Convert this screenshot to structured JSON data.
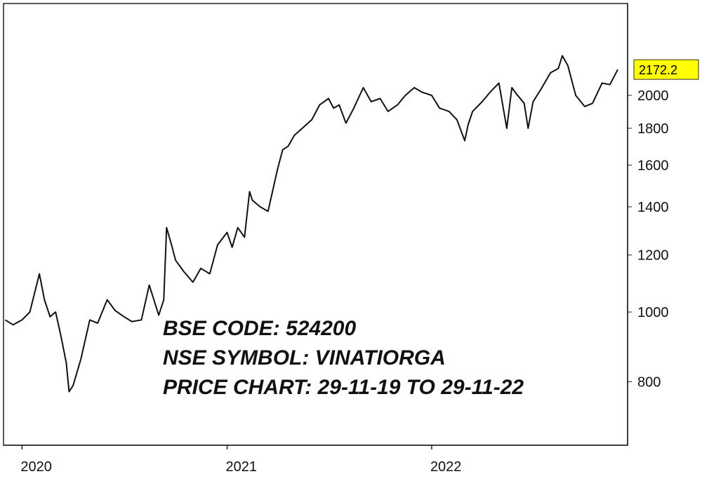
{
  "chart_data": {
    "type": "line",
    "x_tick_labels": [
      "2020",
      "2021",
      "2022"
    ],
    "y_tick_labels": [
      "800",
      "1000",
      "1200",
      "1400",
      "1600",
      "1800",
      "2000"
    ],
    "y_scale": "log",
    "ylim": [
      700,
      2450
    ],
    "y_axis_side": "right",
    "last_value_label": "2172.2",
    "annotations": [
      "BSE CODE:  524200",
      "NSE SYMBOL: VINATIORGA",
      "PRICE CHART: 29-11-19 TO 29-11-22"
    ],
    "grid": false,
    "legend": "none",
    "series": [
      {
        "x": [
          "2019-12-02",
          "2019-12-16",
          "2020-01-01",
          "2020-01-15",
          "2020-02-01",
          "2020-02-10",
          "2020-02-20",
          "2020-03-01",
          "2020-03-10",
          "2020-03-20",
          "2020-03-25",
          "2020-04-01",
          "2020-04-15",
          "2020-05-01",
          "2020-05-15",
          "2020-06-01",
          "2020-06-15",
          "2020-07-01",
          "2020-07-15",
          "2020-08-01",
          "2020-08-15",
          "2020-09-01",
          "2020-09-10",
          "2020-09-15",
          "2020-09-25",
          "2020-10-01",
          "2020-10-15",
          "2020-11-01",
          "2020-11-15",
          "2020-12-01",
          "2020-12-15",
          "2021-01-01",
          "2021-01-10",
          "2021-01-20",
          "2021-02-01",
          "2021-02-10",
          "2021-02-15",
          "2021-03-01",
          "2021-03-15",
          "2021-04-01",
          "2021-04-10",
          "2021-04-20",
          "2021-05-01",
          "2021-05-15",
          "2021-06-01",
          "2021-06-15",
          "2021-07-01",
          "2021-07-10",
          "2021-07-20",
          "2021-08-01",
          "2021-08-15",
          "2021-09-01",
          "2021-09-15",
          "2021-10-01",
          "2021-10-15",
          "2021-11-01",
          "2021-11-15",
          "2021-12-01",
          "2021-12-15",
          "2022-01-01",
          "2022-01-15",
          "2022-02-01",
          "2022-02-15",
          "2022-03-01",
          "2022-03-07",
          "2022-03-15",
          "2022-04-01",
          "2022-04-15",
          "2022-05-01",
          "2022-05-15",
          "2022-05-24",
          "2022-06-01",
          "2022-06-15",
          "2022-06-22",
          "2022-07-01",
          "2022-07-15",
          "2022-08-01",
          "2022-08-15",
          "2022-08-22",
          "2022-09-01",
          "2022-09-15",
          "2022-10-01",
          "2022-10-15",
          "2022-11-01",
          "2022-11-15",
          "2022-11-29"
        ],
        "y": [
          975,
          960,
          975,
          1000,
          1130,
          1040,
          985,
          1000,
          930,
          850,
          775,
          790,
          860,
          975,
          965,
          1040,
          1005,
          985,
          970,
          975,
          1090,
          990,
          1040,
          1310,
          1230,
          1180,
          1140,
          1100,
          1150,
          1130,
          1240,
          1290,
          1230,
          1310,
          1270,
          1470,
          1430,
          1400,
          1380,
          1580,
          1680,
          1700,
          1760,
          1800,
          1850,
          1940,
          1980,
          1920,
          1940,
          1830,
          1920,
          2050,
          1960,
          1980,
          1900,
          1940,
          2000,
          2050,
          2020,
          2000,
          1920,
          1900,
          1850,
          1730,
          1820,
          1900,
          1960,
          2020,
          2080,
          1800,
          2050,
          2010,
          1950,
          1800,
          1960,
          2040,
          2150,
          2180,
          2270,
          2200,
          2000,
          1930,
          1950,
          2080,
          2070,
          2172
        ]
      }
    ]
  }
}
